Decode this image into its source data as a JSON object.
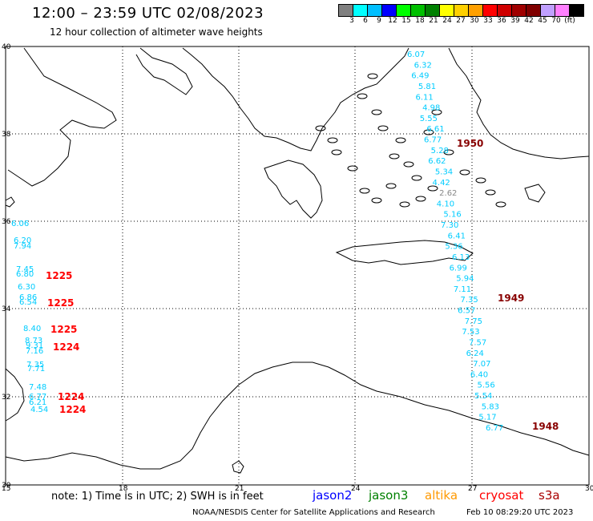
{
  "header": {
    "title": "12:00 – 23:59 UTC 02/08/2023",
    "subtitle": "12 hour collection of altimeter wave heights"
  },
  "colorbar": {
    "labels": [
      "3",
      "6",
      "9",
      "12",
      "15",
      "18",
      "21",
      "24",
      "27",
      "30",
      "33",
      "36",
      "39",
      "42",
      "45",
      "70",
      "(ft)"
    ],
    "colors": [
      "#808080",
      "#00ffff",
      "#00bfff",
      "#0000ff",
      "#00ff00",
      "#00c000",
      "#008000",
      "#ffff00",
      "#ffd000",
      "#ffa000",
      "#ff0000",
      "#d00000",
      "#a00000",
      "#800000",
      "#c0a0ff",
      "#ff80ff",
      "#000000"
    ]
  },
  "map": {
    "lat_labels": [
      "40",
      "38",
      "36",
      "34",
      "32",
      "30"
    ],
    "lon_labels": [
      "15",
      "18",
      "21",
      "24",
      "27",
      "30"
    ],
    "track_color": "#00ccff",
    "time_color_red": "#ff0000",
    "time_color_dark": "#880000",
    "east_track_values": [
      "6.07",
      "6.32",
      "6.49",
      "5.81",
      "6.11",
      "4.98",
      "5.55",
      "6.61",
      "6.77",
      "5.28",
      "6.62",
      "5.34",
      "4.42",
      "2.62",
      "4.10",
      "5.16",
      "7.30",
      "6.41",
      "5.36",
      "6.13",
      "6.99",
      "5.94",
      "7.11",
      "7.35",
      "6.57",
      "7.75",
      "7.53",
      "7.57",
      "6.24",
      "7.07",
      "6.40",
      "5.56",
      "5.54",
      "5.83",
      "5.17",
      "6.77"
    ],
    "east_times": [
      "1950",
      "1949",
      "1948"
    ],
    "west_track_values": [
      "6.06",
      "6.20",
      "7.94",
      "7.45",
      "6.80",
      "6.30",
      "6.86",
      "6.54",
      "8.40",
      "8.73",
      "9.31",
      "7.16",
      "7.35",
      "7.71",
      "7.48",
      "6.77",
      "6.21",
      "4.54"
    ],
    "west_times": [
      "1225",
      "1225",
      "1225",
      "1224",
      "1224",
      "1224"
    ]
  },
  "footer": {
    "note": "note:  1) Time is in UTC; 2) SWH is in feet",
    "legend": [
      {
        "label": "jason2",
        "color": "#0000ff"
      },
      {
        "label": "jason3",
        "color": "#008000"
      },
      {
        "label": "altika",
        "color": "#ff9900"
      },
      {
        "label": "cryosat",
        "color": "#ff0000"
      },
      {
        "label": "s3a",
        "color": "#aa0000"
      }
    ],
    "credit": "NOAA/NESDIS Center for Satellite Applications and Research",
    "timestamp": "Feb 10 08:29:20 UTC 2023"
  }
}
